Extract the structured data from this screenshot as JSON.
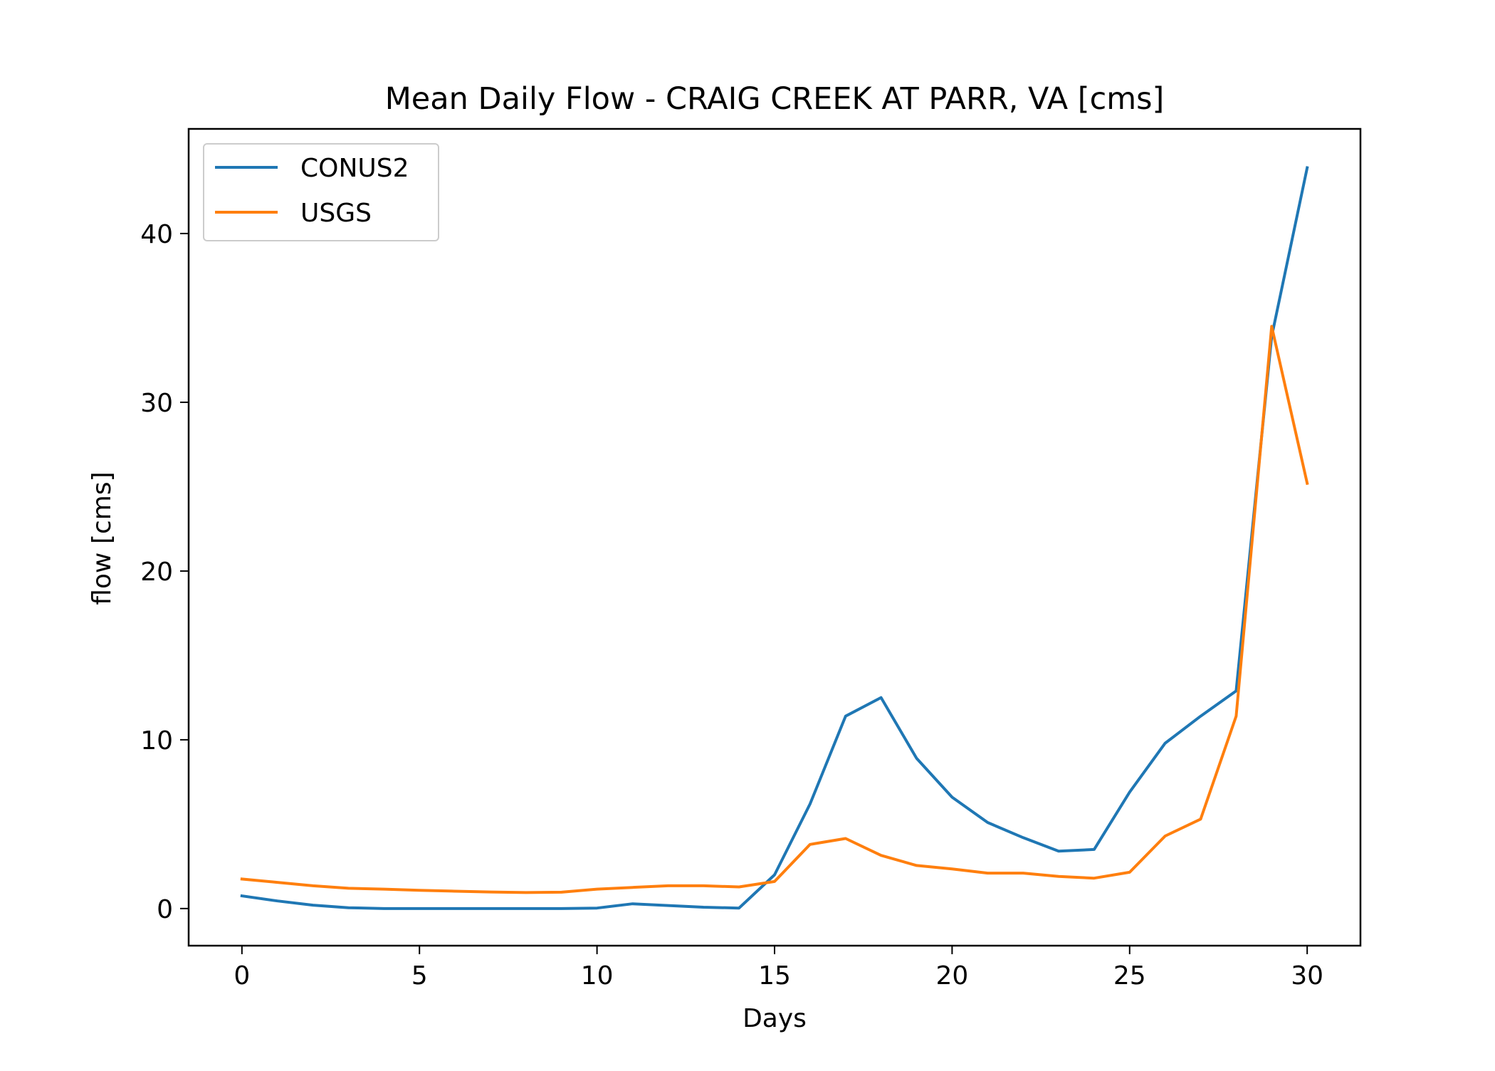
{
  "chart_data": {
    "type": "line",
    "title": "Mean Daily Flow - CRAIG CREEK AT PARR, VA [cms]",
    "xlabel": "Days",
    "ylabel": "flow [cms]",
    "xlim": [
      -1.5,
      31.5
    ],
    "ylim": [
      -2.2,
      46.2
    ],
    "xticks": [
      0,
      5,
      10,
      15,
      20,
      25,
      30
    ],
    "yticks": [
      0,
      10,
      20,
      30,
      40
    ],
    "grid": false,
    "legend_position": "upper-left",
    "x": [
      0,
      1,
      2,
      3,
      4,
      5,
      6,
      7,
      8,
      9,
      10,
      11,
      12,
      13,
      14,
      15,
      16,
      17,
      18,
      19,
      20,
      21,
      22,
      23,
      24,
      25,
      26,
      27,
      28,
      29,
      30
    ],
    "series": [
      {
        "name": "CONUS2",
        "color": "#1f77b4",
        "values": [
          0.75,
          0.45,
          0.2,
          0.05,
          0.0,
          0.0,
          0.0,
          0.0,
          0.0,
          0.0,
          0.03,
          0.28,
          0.18,
          0.08,
          0.03,
          2.0,
          6.2,
          11.4,
          12.5,
          8.9,
          6.6,
          5.1,
          4.2,
          3.4,
          3.5,
          6.9,
          9.8,
          11.4,
          12.9,
          33.9,
          43.9
        ]
      },
      {
        "name": "USGS",
        "color": "#ff7f0e",
        "values": [
          1.75,
          1.55,
          1.35,
          1.2,
          1.15,
          1.08,
          1.03,
          0.98,
          0.95,
          0.97,
          1.15,
          1.25,
          1.35,
          1.35,
          1.28,
          1.6,
          3.8,
          4.15,
          3.15,
          2.55,
          2.35,
          2.1,
          2.1,
          1.9,
          1.8,
          2.15,
          4.3,
          5.3,
          11.4,
          34.5,
          25.2
        ]
      }
    ]
  }
}
